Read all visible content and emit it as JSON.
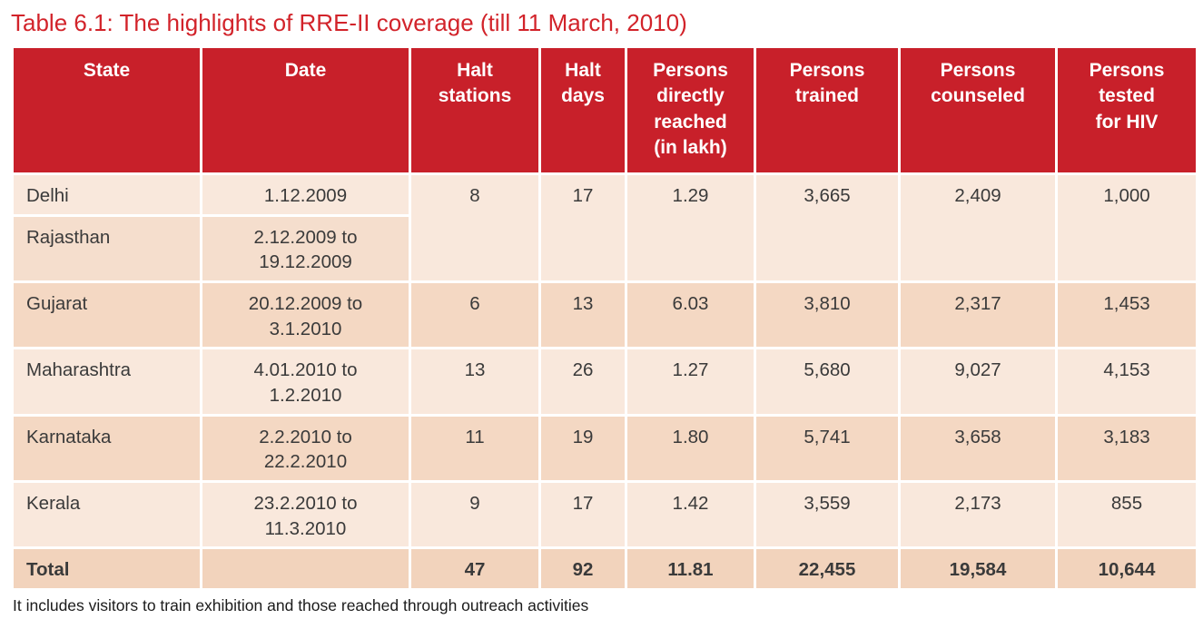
{
  "title": "Table 6.1: The highlights of RRE-II coverage (till 11 March, 2010)",
  "footnote": "It includes visitors to train exhibition and those reached through outreach activities",
  "colors": {
    "title": "#d2232a",
    "header_bg": "#c8202a",
    "header_text": "#ffffff",
    "row_light": "#f9e8dc",
    "row_mid": "#f5decd",
    "row_dark": "#f4d8c3",
    "total_bg": "#f2d3bc",
    "body_text": "#3a3a3a"
  },
  "table": {
    "headers": {
      "state": "State",
      "date": "Date",
      "stations": "Halt\nstations",
      "days": "Halt\ndays",
      "reached": "Persons\ndirectly\nreached\n(in lakh)",
      "trained": "Persons\ntrained",
      "counseled": "Persons\ncounseled",
      "tested": "Persons\ntested\nfor HIV"
    },
    "rows": [
      {
        "state": "Delhi",
        "date": "1.12.2009",
        "stations": "8",
        "days": "17",
        "reached": "1.29",
        "trained": "3,665",
        "counseled": "2,409",
        "tested": "1,000"
      },
      {
        "state": "Rajasthan",
        "date": "2.12.2009 to\n19.12.2009"
      },
      {
        "state": "Gujarat",
        "date": "20.12.2009 to\n3.1.2010",
        "stations": "6",
        "days": "13",
        "reached": "6.03",
        "trained": "3,810",
        "counseled": "2,317",
        "tested": "1,453"
      },
      {
        "state": "Maharashtra",
        "date": "4.01.2010 to\n1.2.2010",
        "stations": "13",
        "days": "26",
        "reached": "1.27",
        "trained": "5,680",
        "counseled": "9,027",
        "tested": "4,153"
      },
      {
        "state": "Karnataka",
        "date": "2.2.2010 to\n22.2.2010",
        "stations": "11",
        "days": "19",
        "reached": "1.80",
        "trained": "5,741",
        "counseled": "3,658",
        "tested": "3,183"
      },
      {
        "state": "Kerala",
        "date": "23.2.2010 to\n11.3.2010",
        "stations": "9",
        "days": "17",
        "reached": "1.42",
        "trained": "3,559",
        "counseled": "2,173",
        "tested": "855"
      }
    ],
    "total": {
      "state": "Total",
      "date": "",
      "stations": "47",
      "days": "92",
      "reached": "11.81",
      "trained": "22,455",
      "counseled": "19,584",
      "tested": "10,644"
    }
  },
  "chart_data": {
    "type": "table",
    "title": "Table 6.1: The highlights of RRE-II coverage (till 11 March, 2010)",
    "columns": [
      "State",
      "Date",
      "Halt stations",
      "Halt days",
      "Persons directly reached (in lakh)",
      "Persons trained",
      "Persons counseled",
      "Persons tested for HIV"
    ],
    "rows": [
      [
        "Delhi",
        "1.12.2009",
        8,
        17,
        1.29,
        3665,
        2409,
        1000
      ],
      [
        "Rajasthan",
        "2.12.2009 to 19.12.2009",
        null,
        null,
        null,
        null,
        null,
        null
      ],
      [
        "Gujarat",
        "20.12.2009 to 3.1.2010",
        6,
        13,
        6.03,
        3810,
        2317,
        1453
      ],
      [
        "Maharashtra",
        "4.01.2010 to 1.2.2010",
        13,
        26,
        1.27,
        5680,
        9027,
        4153
      ],
      [
        "Karnataka",
        "2.2.2010 to 22.2.2010",
        11,
        19,
        1.8,
        5741,
        3658,
        3183
      ],
      [
        "Kerala",
        "23.2.2010 to 11.3.2010",
        9,
        17,
        1.42,
        3559,
        2173,
        855
      ]
    ],
    "total_row": [
      "Total",
      "",
      47,
      92,
      11.81,
      22455,
      19584,
      10644
    ],
    "notes": "Delhi and Rajasthan rows share merged data cells for the numeric columns"
  }
}
